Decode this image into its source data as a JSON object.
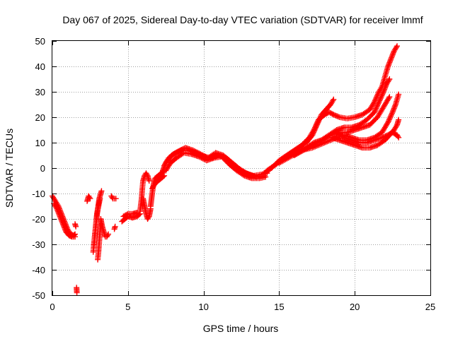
{
  "chart_data": {
    "type": "scatter",
    "title": "Day 067 of 2025, Sidereal Day-to-day VTEC variation (SDTVAR) for receiver lmmf",
    "xlabel": "GPS time / hours",
    "ylabel": "SDTVAR / TECUs",
    "xlim": [
      0,
      25
    ],
    "ylim": [
      -50,
      50
    ],
    "xticks": [
      0,
      5,
      10,
      15,
      20,
      25
    ],
    "yticks": [
      -50,
      -40,
      -30,
      -20,
      -10,
      0,
      10,
      20,
      30,
      40,
      50
    ],
    "grid": true,
    "marker": "+",
    "series": [
      {
        "name": "SDTVAR",
        "color": "#ff0000",
        "segments": [
          [
            [
              0.0,
              -11
            ],
            [
              0.2,
              -13
            ],
            [
              0.4,
              -15
            ],
            [
              0.6,
              -18
            ],
            [
              0.8,
              -21
            ],
            [
              1.0,
              -24
            ],
            [
              1.2,
              -26
            ],
            [
              1.4,
              -26.5
            ],
            [
              1.5,
              -26
            ]
          ],
          [
            [
              0.1,
              -14
            ],
            [
              0.3,
              -16
            ],
            [
              0.5,
              -19
            ],
            [
              0.7,
              -22
            ],
            [
              0.9,
              -25
            ],
            [
              1.1,
              -26.5
            ],
            [
              1.3,
              -27
            ],
            [
              1.5,
              -27
            ]
          ],
          [
            [
              1.5,
              -22
            ],
            [
              1.55,
              -23
            ]
          ],
          [
            [
              1.6,
              -47
            ],
            [
              1.62,
              -49
            ]
          ],
          [
            [
              2.3,
              -13
            ],
            [
              2.4,
              -11
            ],
            [
              2.5,
              -12
            ]
          ],
          [
            [
              2.7,
              -33
            ],
            [
              2.8,
              -27
            ],
            [
              2.9,
              -21
            ],
            [
              3.0,
              -16
            ],
            [
              3.1,
              -12
            ],
            [
              3.2,
              -10
            ],
            [
              3.25,
              -9
            ]
          ],
          [
            [
              2.75,
              -30
            ],
            [
              2.85,
              -24
            ],
            [
              2.95,
              -18
            ],
            [
              3.05,
              -15
            ],
            [
              3.15,
              -12
            ]
          ],
          [
            [
              3.0,
              -36
            ],
            [
              3.05,
              -33
            ],
            [
              3.1,
              -29
            ],
            [
              3.15,
              -25
            ],
            [
              3.2,
              -21
            ]
          ],
          [
            [
              3.2,
              -20
            ],
            [
              3.3,
              -23
            ],
            [
              3.4,
              -25
            ],
            [
              3.5,
              -27
            ],
            [
              3.6,
              -27
            ],
            [
              3.7,
              -26
            ]
          ],
          [
            [
              3.9,
              -11
            ],
            [
              4.0,
              -12
            ],
            [
              4.1,
              -12
            ],
            [
              4.2,
              -12
            ]
          ],
          [
            [
              4.1,
              -24
            ],
            [
              4.15,
              -23
            ]
          ],
          [
            [
              4.6,
              -21
            ],
            [
              4.8,
              -20
            ],
            [
              5.0,
              -19
            ],
            [
              5.3,
              -19.5
            ],
            [
              5.6,
              -19
            ],
            [
              5.8,
              -18
            ]
          ],
          [
            [
              4.7,
              -19
            ],
            [
              5.0,
              -18
            ],
            [
              5.3,
              -18
            ],
            [
              5.6,
              -17.5
            ]
          ],
          [
            [
              5.8,
              -17
            ],
            [
              5.9,
              -12
            ],
            [
              5.95,
              -8
            ],
            [
              6.0,
              -5
            ],
            [
              6.1,
              -3
            ],
            [
              6.2,
              -2
            ],
            [
              6.3,
              -3
            ],
            [
              6.4,
              -5
            ]
          ],
          [
            [
              6.0,
              -12
            ],
            [
              6.1,
              -15
            ],
            [
              6.2,
              -18
            ],
            [
              6.3,
              -20
            ],
            [
              6.4,
              -19
            ],
            [
              6.5,
              -16
            ]
          ],
          [
            [
              6.5,
              -15
            ],
            [
              6.6,
              -10
            ],
            [
              6.7,
              -6
            ],
            [
              6.8,
              -4
            ],
            [
              7.0,
              -3
            ],
            [
              7.2,
              -2
            ],
            [
              7.4,
              -1
            ]
          ],
          [
            [
              6.6,
              -8
            ],
            [
              6.8,
              -6
            ],
            [
              7.0,
              -5
            ],
            [
              7.2,
              -4
            ],
            [
              7.4,
              -3
            ]
          ],
          [
            [
              7.3,
              -1
            ],
            [
              7.5,
              2
            ],
            [
              7.7,
              4
            ],
            [
              8.0,
              5.5
            ],
            [
              8.5,
              7
            ],
            [
              9.0,
              7
            ],
            [
              9.5,
              6
            ],
            [
              10.0,
              4.5
            ],
            [
              10.5,
              4
            ],
            [
              11.0,
              5
            ],
            [
              11.5,
              4
            ],
            [
              12.0,
              1.5
            ],
            [
              12.5,
              -1
            ],
            [
              13.0,
              -2.5
            ],
            [
              13.5,
              -3.5
            ],
            [
              14.0,
              -3
            ]
          ],
          [
            [
              7.4,
              1
            ],
            [
              7.6,
              3
            ],
            [
              7.9,
              5
            ],
            [
              8.3,
              6.5
            ],
            [
              8.8,
              8
            ],
            [
              9.3,
              7
            ],
            [
              9.8,
              5.5
            ],
            [
              10.3,
              4
            ],
            [
              10.8,
              6
            ],
            [
              11.3,
              5
            ],
            [
              11.8,
              2.5
            ],
            [
              12.3,
              0
            ],
            [
              12.8,
              -2
            ],
            [
              13.3,
              -3
            ],
            [
              13.8,
              -2.5
            ],
            [
              14.2,
              -2
            ]
          ],
          [
            [
              7.5,
              -1
            ],
            [
              7.8,
              2
            ],
            [
              8.2,
              4
            ],
            [
              8.7,
              6
            ],
            [
              9.2,
              5.5
            ],
            [
              9.7,
              4.5
            ],
            [
              10.2,
              3
            ],
            [
              10.7,
              4
            ],
            [
              11.2,
              4.5
            ],
            [
              11.7,
              1.5
            ],
            [
              12.2,
              -1
            ],
            [
              12.7,
              -3
            ],
            [
              13.2,
              -4
            ],
            [
              13.7,
              -4
            ],
            [
              14.1,
              -3.5
            ]
          ],
          [
            [
              14.0,
              -2
            ],
            [
              14.5,
              0
            ],
            [
              15.0,
              3
            ],
            [
              15.5,
              5
            ],
            [
              16.0,
              7
            ],
            [
              16.5,
              9
            ],
            [
              17.0,
              12
            ],
            [
              17.3,
              15
            ],
            [
              17.6,
              19
            ],
            [
              18.0,
              21
            ],
            [
              18.3,
              22
            ],
            [
              18.6,
              21
            ],
            [
              19.0,
              20
            ],
            [
              19.5,
              19.5
            ],
            [
              20.0,
              20
            ],
            [
              20.5,
              21
            ],
            [
              21.0,
              23
            ],
            [
              21.3,
              26
            ],
            [
              21.6,
              30
            ],
            [
              21.8,
              32
            ],
            [
              22.0,
              36
            ],
            [
              22.2,
              40
            ],
            [
              22.4,
              43
            ],
            [
              22.6,
              46
            ],
            [
              22.8,
              48
            ]
          ],
          [
            [
              14.2,
              -1
            ],
            [
              14.8,
              1.5
            ],
            [
              15.3,
              4
            ],
            [
              15.8,
              6
            ],
            [
              16.3,
              8
            ],
            [
              16.8,
              10
            ],
            [
              17.2,
              13
            ],
            [
              17.5,
              17
            ],
            [
              17.8,
              21
            ],
            [
              18.1,
              23
            ],
            [
              18.4,
              25
            ],
            [
              18.6,
              27
            ]
          ],
          [
            [
              15.0,
              2
            ],
            [
              15.6,
              4
            ],
            [
              16.2,
              6
            ],
            [
              16.8,
              8
            ],
            [
              17.3,
              10
            ],
            [
              17.8,
              11
            ],
            [
              18.3,
              13
            ],
            [
              18.8,
              15
            ],
            [
              19.3,
              16
            ],
            [
              19.8,
              16
            ],
            [
              20.3,
              17
            ],
            [
              20.8,
              19
            ],
            [
              21.3,
              22
            ],
            [
              21.6,
              26
            ],
            [
              21.9,
              30
            ],
            [
              22.1,
              33
            ],
            [
              22.3,
              35
            ]
          ],
          [
            [
              16.0,
              5
            ],
            [
              16.6,
              7
            ],
            [
              17.2,
              9
            ],
            [
              17.8,
              11
            ],
            [
              18.4,
              13
            ],
            [
              19.0,
              14
            ],
            [
              19.5,
              14
            ],
            [
              20.0,
              15
            ],
            [
              20.5,
              16
            ],
            [
              21.0,
              17
            ],
            [
              21.5,
              20
            ],
            [
              21.8,
              23
            ],
            [
              22.1,
              26
            ],
            [
              22.3,
              28
            ]
          ],
          [
            [
              16.5,
              7
            ],
            [
              17.2,
              8
            ],
            [
              18.0,
              10
            ],
            [
              18.8,
              12
            ],
            [
              19.3,
              13
            ],
            [
              19.8,
              12
            ],
            [
              20.3,
              11
            ],
            [
              20.8,
              11
            ],
            [
              21.3,
              12
            ],
            [
              21.8,
              14
            ],
            [
              22.2,
              18
            ],
            [
              22.5,
              22
            ],
            [
              22.7,
              25
            ],
            [
              22.9,
              29
            ]
          ],
          [
            [
              18.5,
              12
            ],
            [
              19.0,
              11
            ],
            [
              19.5,
              10
            ],
            [
              20.0,
              9
            ],
            [
              20.5,
              8
            ],
            [
              21.0,
              8
            ],
            [
              21.5,
              9
            ],
            [
              22.0,
              11
            ],
            [
              22.3,
              13
            ],
            [
              22.6,
              15
            ],
            [
              22.8,
              17
            ],
            [
              22.9,
              19
            ]
          ],
          [
            [
              18.8,
              14
            ],
            [
              19.3,
              12
            ],
            [
              19.8,
              11
            ],
            [
              20.3,
              10
            ],
            [
              20.8,
              10
            ],
            [
              21.3,
              11
            ],
            [
              21.8,
              12
            ],
            [
              22.2,
              13
            ],
            [
              22.5,
              14
            ],
            [
              22.8,
              13
            ],
            [
              22.9,
              12
            ]
          ]
        ]
      }
    ]
  }
}
